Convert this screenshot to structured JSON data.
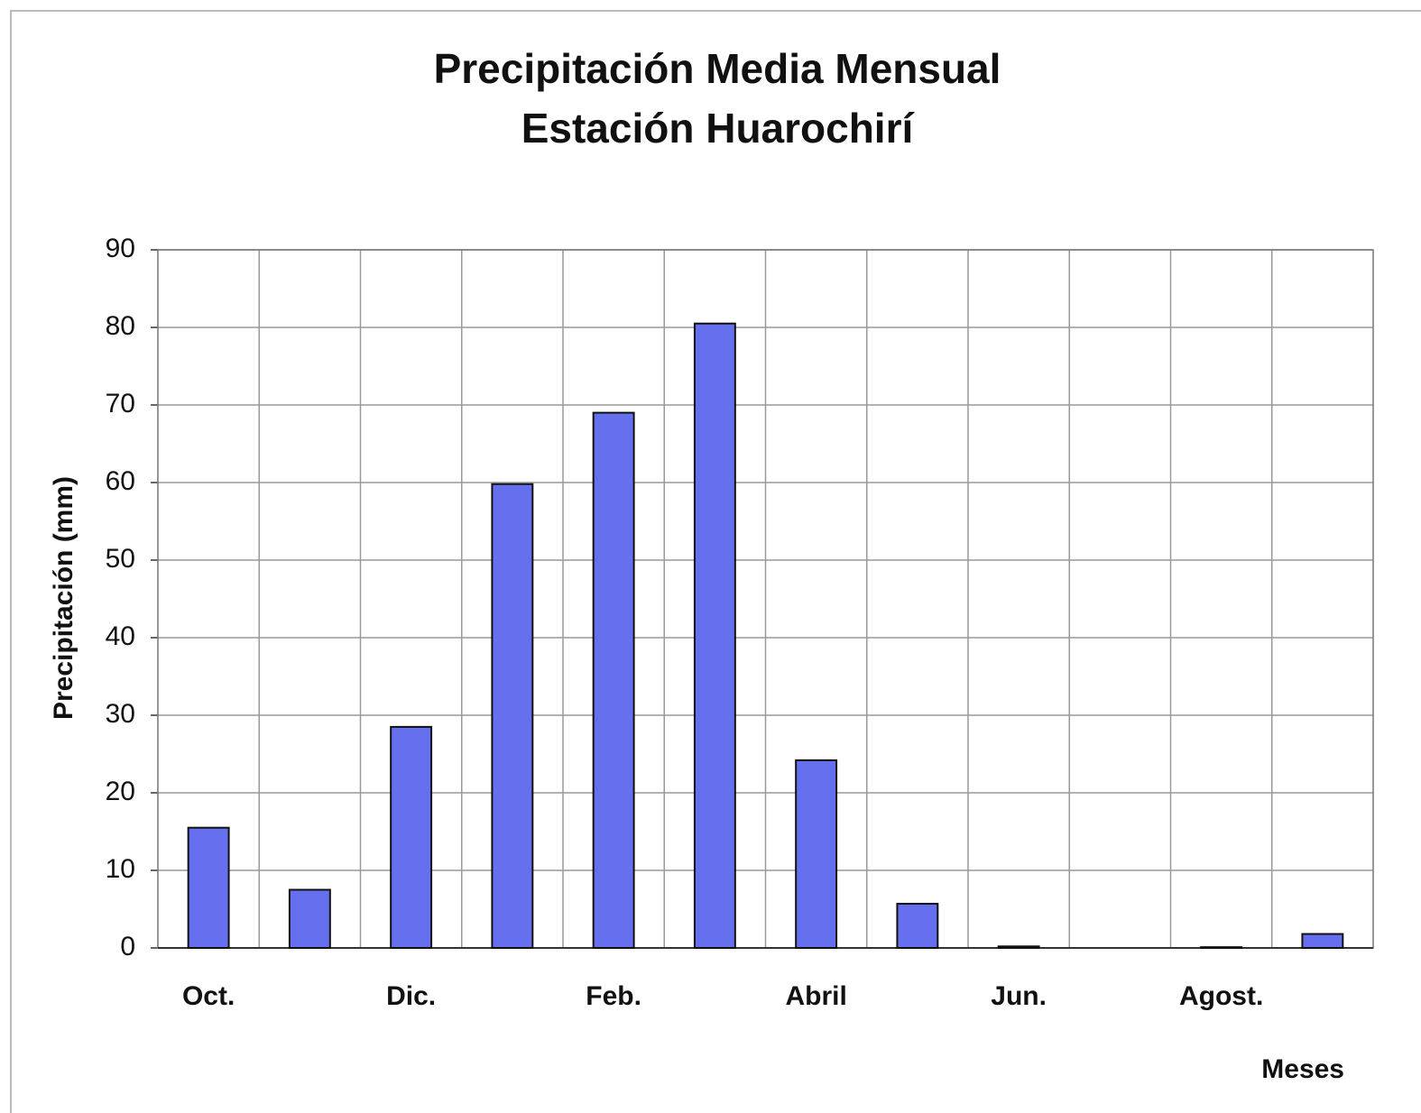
{
  "chart_data": {
    "type": "bar",
    "title": "Precipitación Media Mensual",
    "subtitle": "Estación Huarochirí",
    "y_label": "Precipitación (mm)",
    "x_label": "Meses",
    "categories": [
      "Oct.",
      null,
      "Dic.",
      null,
      "Feb.",
      null,
      "Abril",
      null,
      "Jun.",
      null,
      "Agost.",
      null
    ],
    "values": [
      15.5,
      7.5,
      28.5,
      59.8,
      69,
      80.5,
      24.2,
      5.7,
      0.2,
      0,
      0.1,
      1.8
    ],
    "color": "#6670ee",
    "ylim": [
      0,
      90
    ],
    "yticks": [
      0,
      10,
      20,
      30,
      40,
      50,
      60,
      70,
      80,
      90
    ],
    "grid": true
  }
}
